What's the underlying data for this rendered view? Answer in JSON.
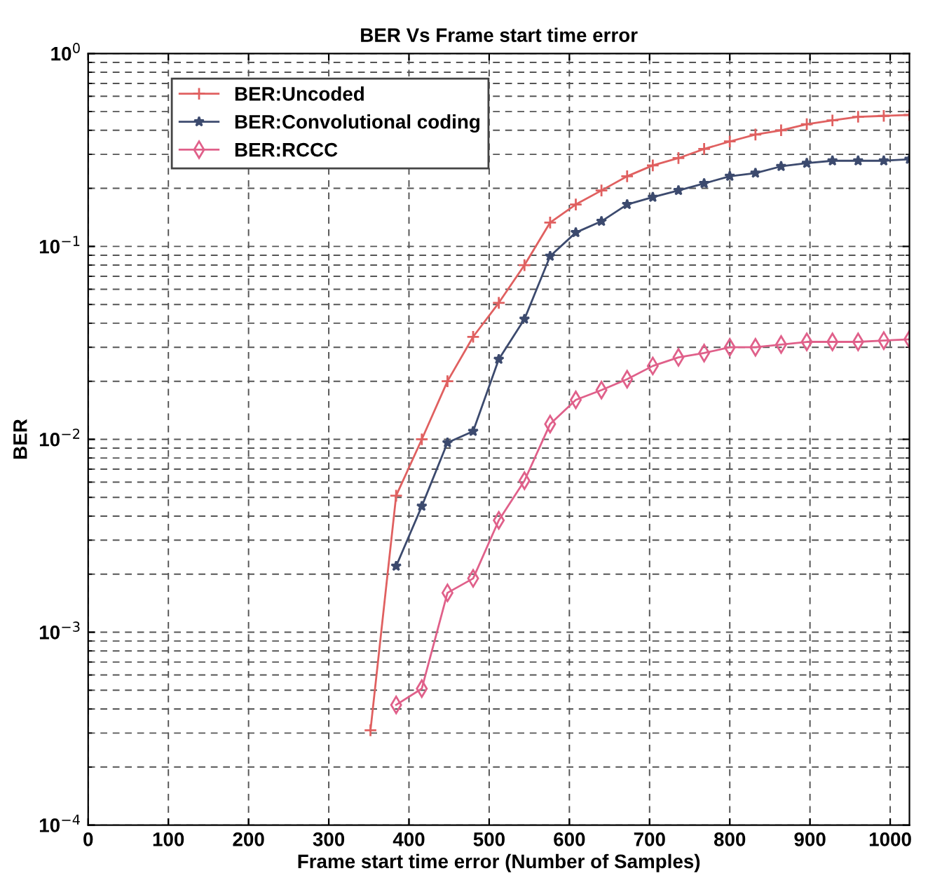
{
  "chart_data": {
    "type": "line",
    "title": "BER Vs Frame start time error",
    "xlabel": "Frame start time error (Number of Samples)",
    "ylabel": "BER",
    "log": "y",
    "grid": true,
    "legend": "top left",
    "line_style": "solid",
    "xlim": [
      0,
      1024
    ],
    "xticks": [
      0,
      100,
      200,
      300,
      400,
      500,
      600,
      700,
      800,
      900,
      1000
    ],
    "ylim": [
      0.0001,
      1
    ],
    "yticks": [
      {
        "value": 0.0001,
        "label": "10$^{−4}$"
      },
      {
        "value": 0.001,
        "label": "10$^{−3}$"
      },
      {
        "value": 0.01,
        "label": "10$^{−2}$"
      },
      {
        "value": 0.1,
        "label": "10$^{−1}$"
      },
      {
        "value": 1,
        "label": "10$^{0}$"
      }
    ],
    "series": [
      {
        "name": "BER:Uncoded",
        "color": "#e06060",
        "marker": "cross",
        "x": [
          352,
          384,
          416,
          448,
          480,
          512,
          544,
          576,
          608,
          640,
          672,
          704,
          736,
          768,
          800,
          832,
          864,
          896,
          928,
          960,
          992,
          1024
        ],
        "values": [
          0.00031,
          0.0051,
          0.01,
          0.02,
          0.034,
          0.051,
          0.08,
          0.133,
          0.165,
          0.195,
          0.231,
          0.263,
          0.287,
          0.32,
          0.35,
          0.38,
          0.4,
          0.43,
          0.45,
          0.47,
          0.475,
          0.48
        ]
      },
      {
        "name": "BER:Convolutional coding",
        "color": "#3c4a6e",
        "marker": "star",
        "x": [
          384,
          416,
          448,
          480,
          512,
          544,
          576,
          608,
          640,
          672,
          704,
          736,
          768,
          800,
          832,
          864,
          896,
          928,
          960,
          992,
          1024
        ],
        "values": [
          0.0022,
          0.0045,
          0.0096,
          0.011,
          0.026,
          0.042,
          0.089,
          0.118,
          0.135,
          0.165,
          0.18,
          0.195,
          0.212,
          0.231,
          0.24,
          0.26,
          0.27,
          0.278,
          0.278,
          0.278,
          0.283
        ]
      },
      {
        "name": "BER:RCCC",
        "color": "#e0608a",
        "marker": "diamond",
        "x": [
          384,
          416,
          448,
          480,
          512,
          544,
          576,
          608,
          640,
          672,
          704,
          736,
          768,
          800,
          832,
          864,
          896,
          928,
          960,
          992,
          1024
        ],
        "values": [
          0.00042,
          0.00051,
          0.0016,
          0.0019,
          0.0038,
          0.0061,
          0.012,
          0.016,
          0.018,
          0.0205,
          0.024,
          0.0266,
          0.028,
          0.03,
          0.03,
          0.031,
          0.032,
          0.032,
          0.032,
          0.0325,
          0.033
        ]
      }
    ]
  }
}
